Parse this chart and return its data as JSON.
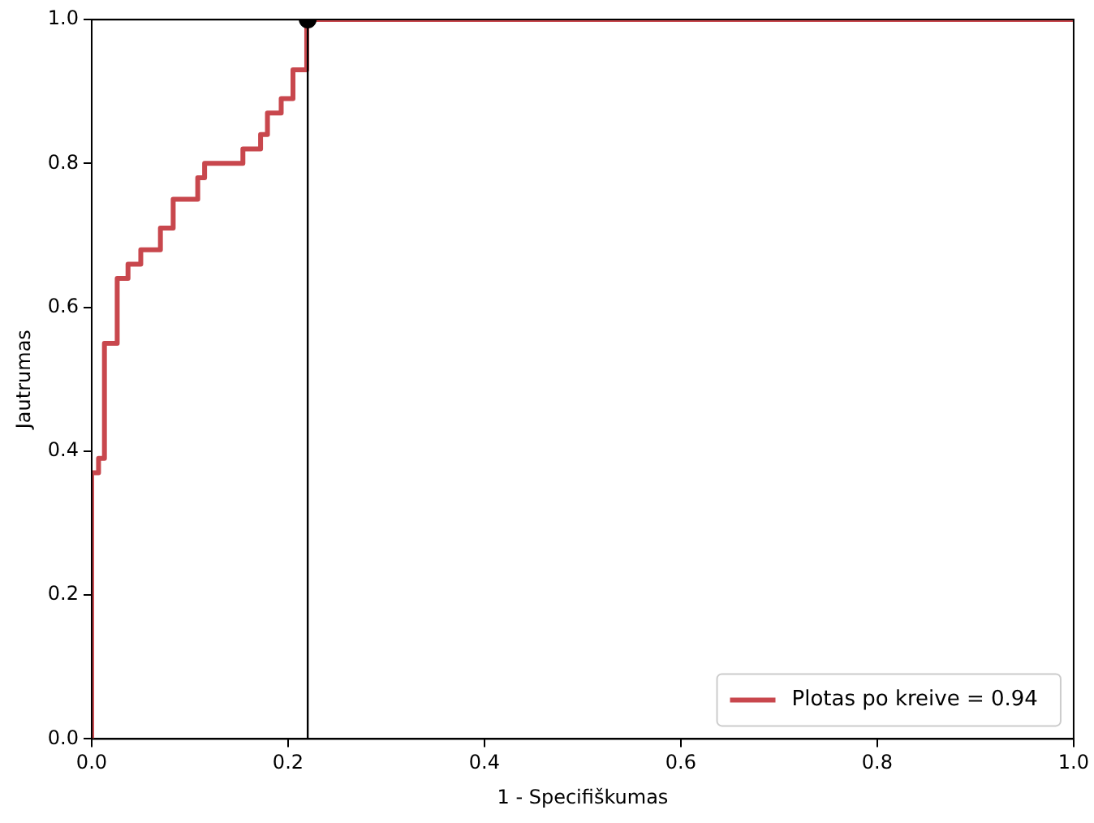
{
  "chart_data": {
    "type": "step",
    "xlabel": "1 - Specifiškumas",
    "ylabel": "Jautrumas",
    "xlim": [
      0,
      1
    ],
    "ylim": [
      0,
      1
    ],
    "xticks": [
      {
        "value": 0,
        "label": "0.0"
      },
      {
        "value": 0.2,
        "label": "0.2"
      },
      {
        "value": 0.4,
        "label": "0.4"
      },
      {
        "value": 0.6,
        "label": "0.6"
      },
      {
        "value": 0.8,
        "label": "0.8"
      },
      {
        "value": 1,
        "label": "1.0"
      }
    ],
    "yticks": [
      {
        "value": 0,
        "label": "0.0"
      },
      {
        "value": 0.2,
        "label": "0.2"
      },
      {
        "value": 0.4,
        "label": "0.4"
      },
      {
        "value": 0.6,
        "label": "0.6"
      },
      {
        "value": 0.8,
        "label": "0.8"
      },
      {
        "value": 1,
        "label": "1.0"
      }
    ],
    "grid": false,
    "legend": "bottom right",
    "line_style": "solid",
    "series": [
      {
        "name": "Plotas po kreive = 0.94",
        "color": "#c8474d",
        "x": [
          0,
          0,
          0.007,
          0.013,
          0.026,
          0.037,
          0.05,
          0.07,
          0.083,
          0.108,
          0.115,
          0.154,
          0.172,
          0.179,
          0.193,
          0.205,
          0.219,
          1
        ],
        "values": [
          0,
          0.37,
          0.39,
          0.55,
          0.64,
          0.66,
          0.68,
          0.71,
          0.75,
          0.78,
          0.8,
          0.82,
          0.84,
          0.87,
          0.89,
          0.93,
          1,
          1
        ]
      },
      {
        "type": "line",
        "color": "#000000",
        "x": [
          0,
          0.22,
          0.22
        ],
        "values": [
          1,
          1,
          0
        ]
      },
      {
        "type": "scatter",
        "color": "#000000",
        "marker": "circle",
        "x": [
          0.22
        ],
        "values": [
          1
        ]
      }
    ]
  }
}
